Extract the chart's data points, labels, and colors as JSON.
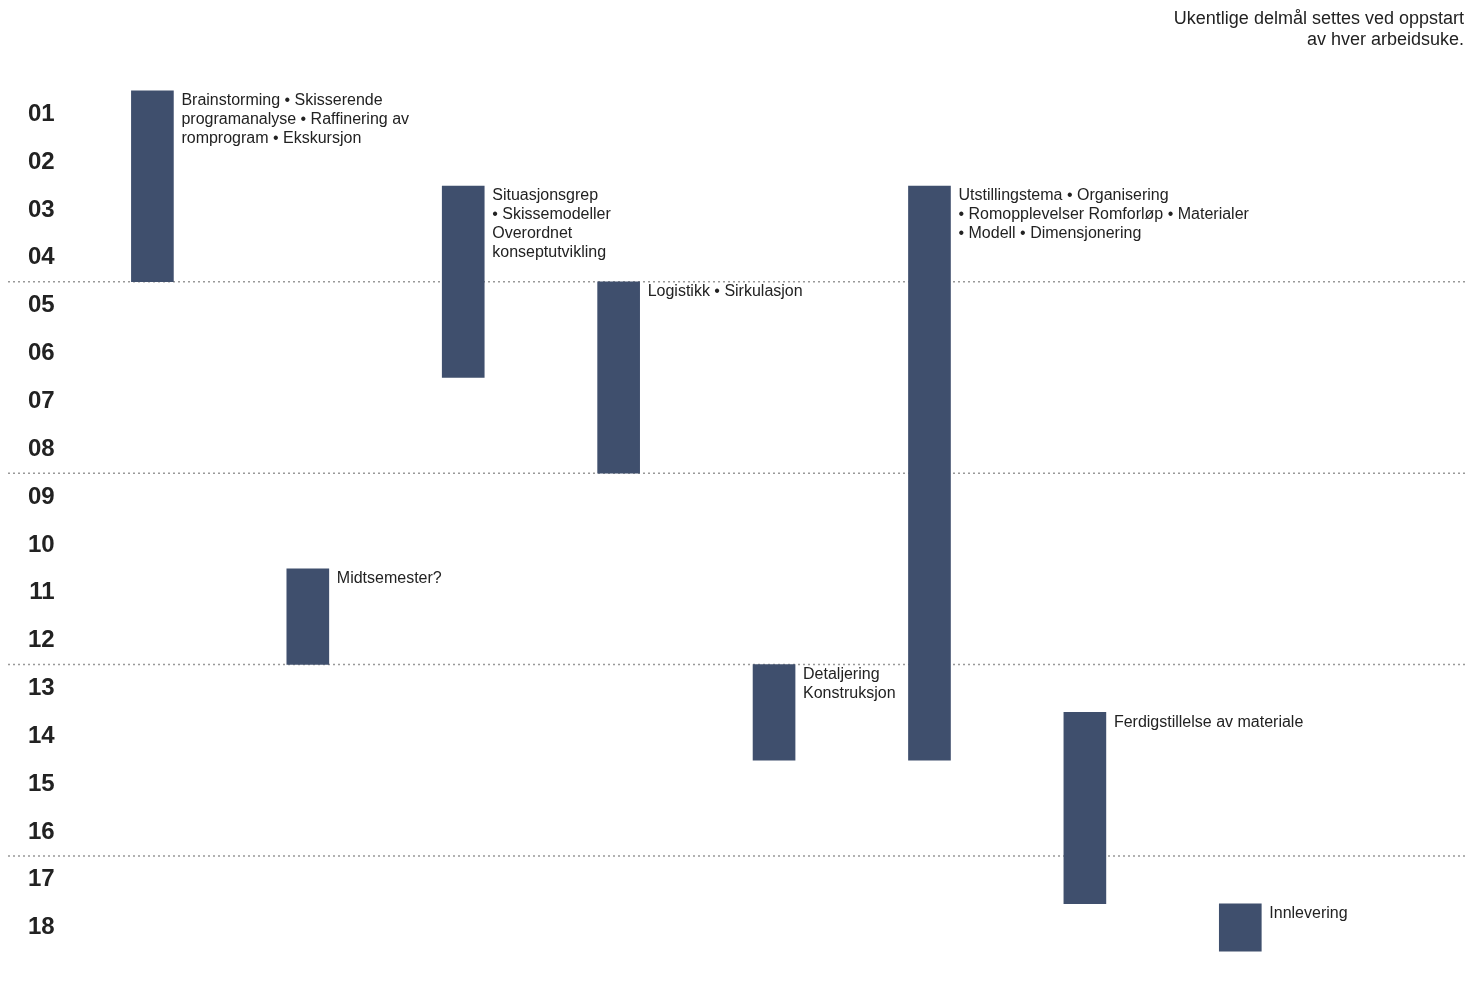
{
  "chart_data": {
    "type": "bar",
    "categories": [
      null,
      null,
      null,
      null,
      null,
      null,
      null,
      null
    ],
    "base": [
      0.5,
      10.5,
      2.5,
      4.5,
      12.5,
      2.5,
      13.5,
      17.5
    ],
    "values": [
      4,
      2,
      4,
      4,
      2,
      12,
      4,
      1
    ],
    "color": "#3f4f6d",
    "ylim": [
      18.5,
      0.5
    ],
    "yticks": [
      {
        "value": 1,
        "label": "01"
      },
      {
        "value": 2,
        "label": "02"
      },
      {
        "value": 3,
        "label": "03"
      },
      {
        "value": 4,
        "label": "04"
      },
      {
        "value": 5,
        "label": "05"
      },
      {
        "value": 6,
        "label": "06"
      },
      {
        "value": 7,
        "label": "07"
      },
      {
        "value": 8,
        "label": "08"
      },
      {
        "value": 9,
        "label": "09"
      },
      {
        "value": 10,
        "label": "10"
      },
      {
        "value": 11,
        "label": "11"
      },
      {
        "value": 12,
        "label": "12"
      },
      {
        "value": 13,
        "label": "13"
      },
      {
        "value": 14,
        "label": "14"
      },
      {
        "value": 15,
        "label": "15"
      },
      {
        "value": 16,
        "label": "16"
      },
      {
        "value": 17,
        "label": "17"
      },
      {
        "value": 18,
        "label": "18"
      }
    ],
    "ref_lines": [
      {
        "axis": "y",
        "value": 4.5,
        "color": "#999999",
        "line_style": "dotted"
      },
      {
        "axis": "y",
        "value": 8.5,
        "color": "#999999",
        "line_style": "dotted"
      },
      {
        "axis": "y",
        "value": 12.5,
        "color": "#999999",
        "line_style": "dotted"
      },
      {
        "axis": "y",
        "value": 16.5,
        "color": "#999999",
        "line_style": "dotted"
      }
    ],
    "annotations": [
      "Brainstorming • Skisserende programanalyse • Raffinering av romprogram • Ekskursjon",
      "Midtsemester?",
      "Situasjonsgrep • Skissemodeller Overordnet konseptutvikling",
      "Logistikk • Sirkulasjon",
      "Detaljering Konstruksjon",
      "Utstillingstema • Organisering • Romopplevelser Romforløp • Materialer • Modell • Dimensjonering",
      "Ferdigstillelse av materiale",
      "Innlevering",
      "Ukentlige delmål settes ved oppstart av hver arbeidsuke."
    ],
    "grid": false,
    "legend": false
  }
}
